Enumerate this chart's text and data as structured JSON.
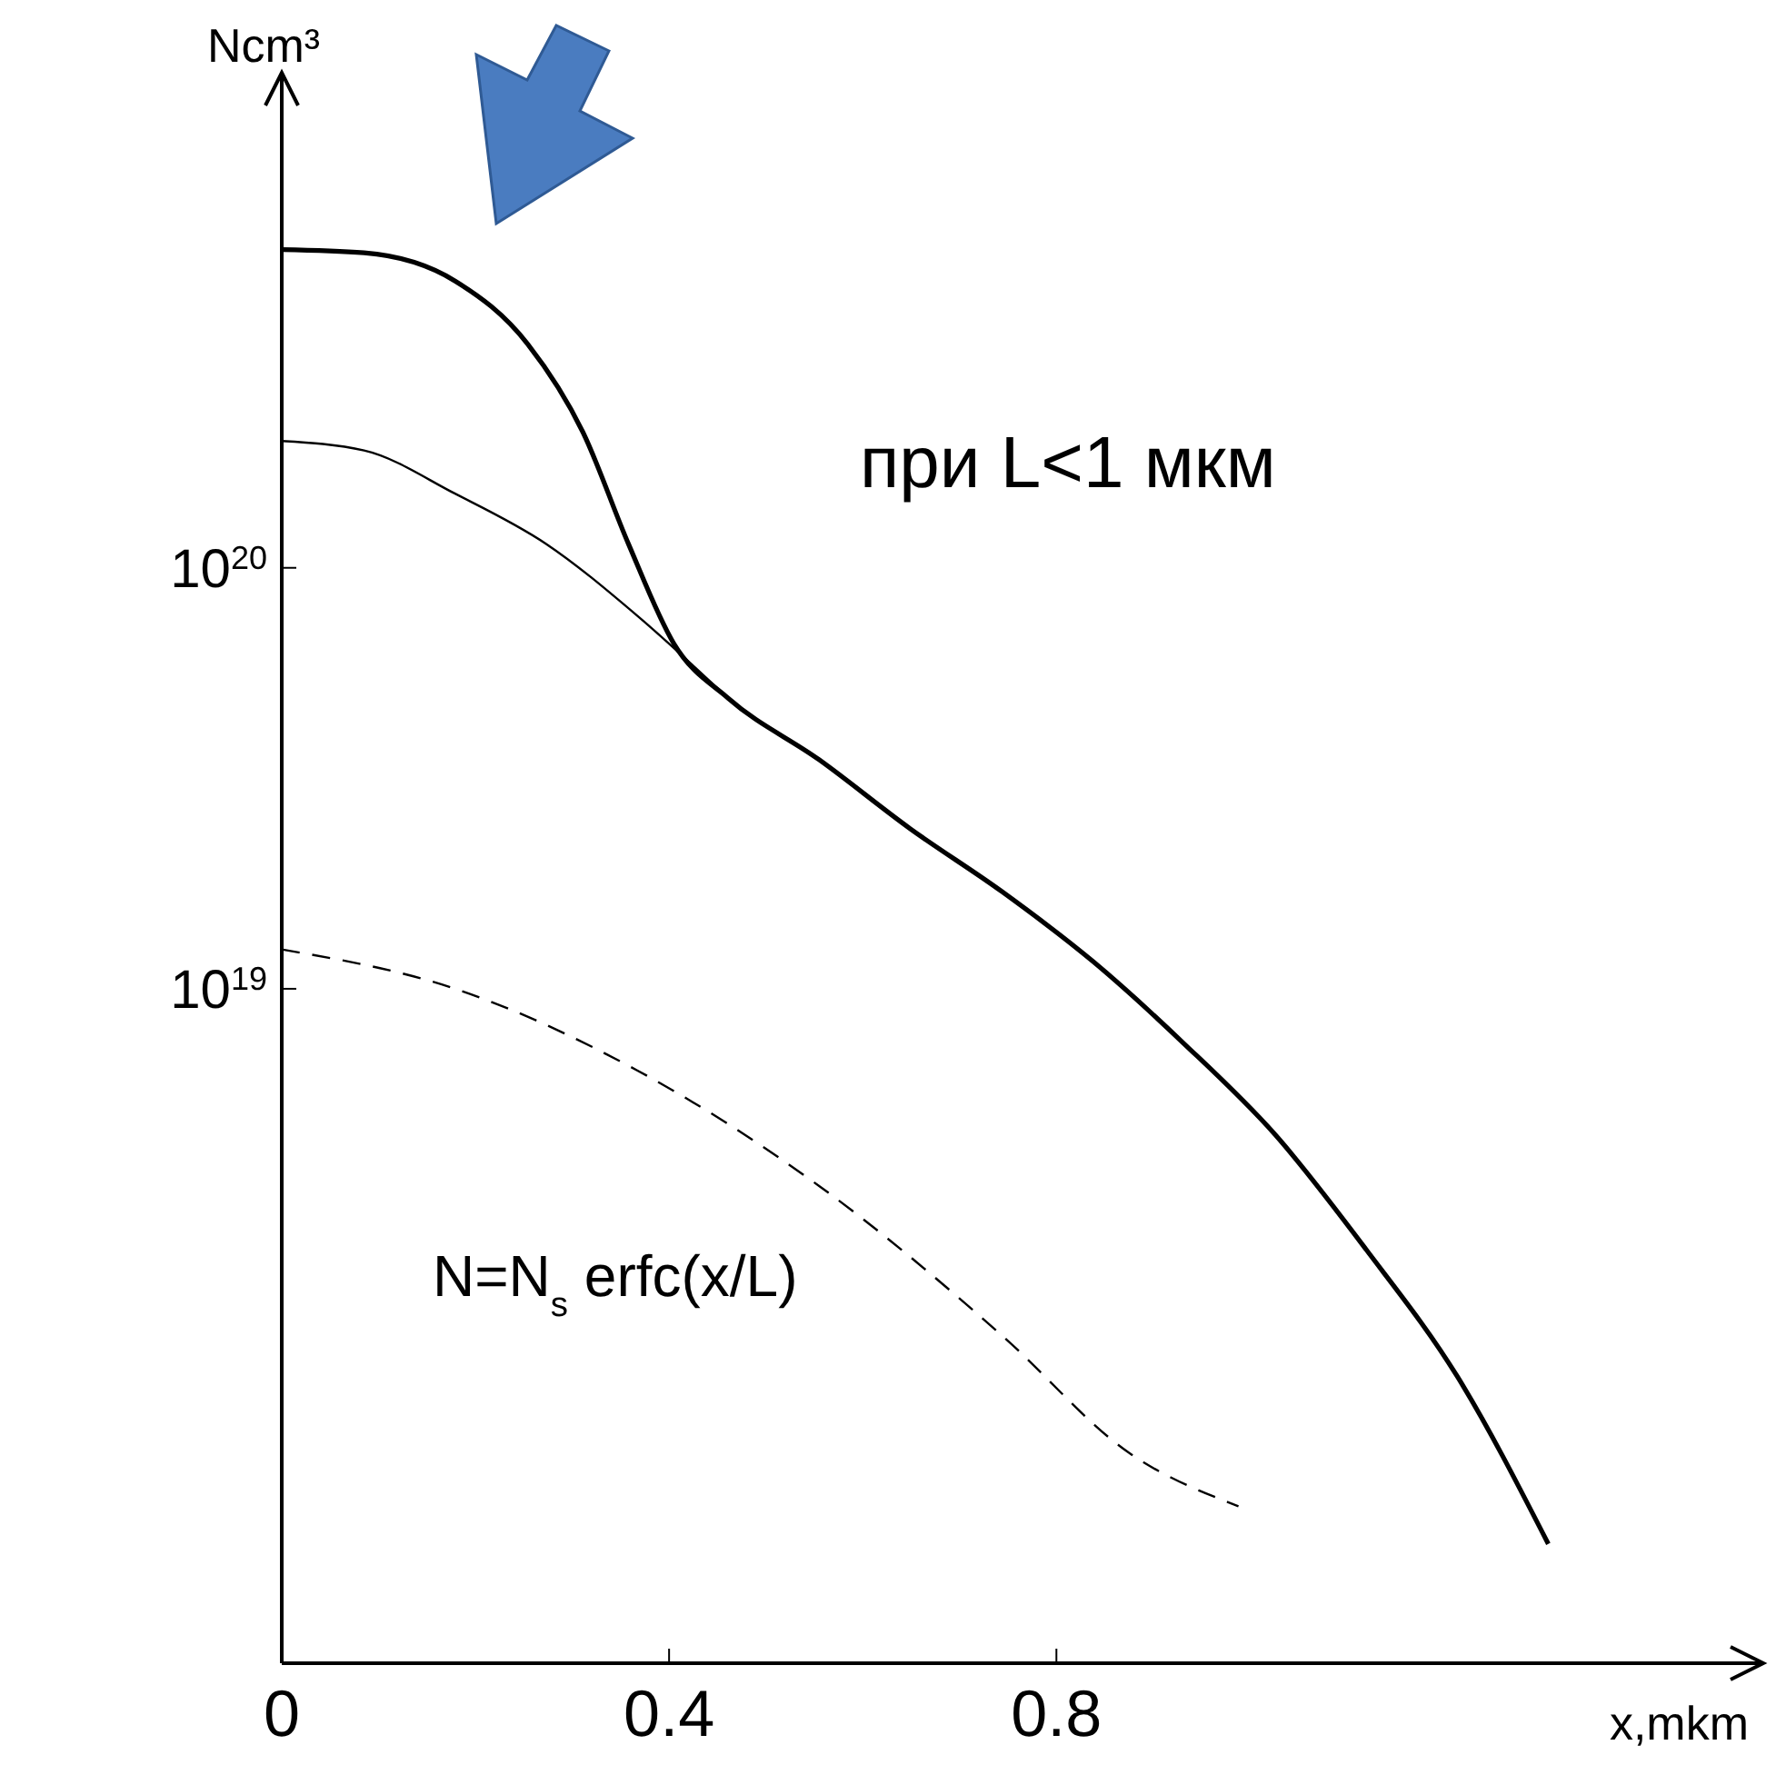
{
  "chart_data": {
    "type": "line",
    "xlabel": "x,mkm",
    "ylabel": "Ncm³",
    "log": "y",
    "grid": false,
    "xlim": [
      0,
      1.53
    ],
    "xticks": [
      0,
      0.4,
      0.8
    ],
    "ylim": [
      2.5e+17,
      1.5e+21
    ],
    "yticks": [
      {
        "value": 1e+19,
        "label": "10$^{19}$"
      },
      {
        "value": 1e+20,
        "label": "10$^{20}$"
      }
    ],
    "annotations": [
      "при L<1 мкм",
      "N=N$_{s}$ erfc(x/L)"
    ],
    "series": [
      {
        "color": "#000000",
        "line_style": "solid",
        "x": [
          0,
          0.085,
          0.179,
          0.254,
          0.311,
          0.358,
          0.405,
          0.461,
          0.555,
          0.649,
          0.744,
          0.838,
          0.932,
          1.026,
          1.12,
          1.214,
          1.308
        ],
        "values": [
          5.7e+20,
          5.6e+20,
          4.8e+20,
          3.4e+20,
          2.1e+20,
          1.14e+20,
          6.6e+19,
          4.9e+19,
          3.5e+19,
          2.4e+19,
          1.7e+19,
          1.16e+19,
          7.4e+18,
          4.5e+18,
          2.4e+18,
          1.2e+18,
          4.8e+17
        ]
      },
      {
        "color": "#000000",
        "line_style": "solid",
        "x": [
          0,
          0.085,
          0.179,
          0.273,
          0.367,
          0.461
        ],
        "values": [
          2e+20,
          1.9e+20,
          1.5e+20,
          1.14e+20,
          7.7e+19,
          4.9e+19
        ]
      },
      {
        "color": "#000000",
        "line_style": "dashed",
        "x": [
          0,
          0.179,
          0.367,
          0.555,
          0.744,
          0.875,
          0.988
        ],
        "values": [
          1.24e+19,
          1e+19,
          6.4e+18,
          3.4e+18,
          1.5e+18,
          7.9e+17,
          5.9e+17
        ]
      }
    ]
  }
}
